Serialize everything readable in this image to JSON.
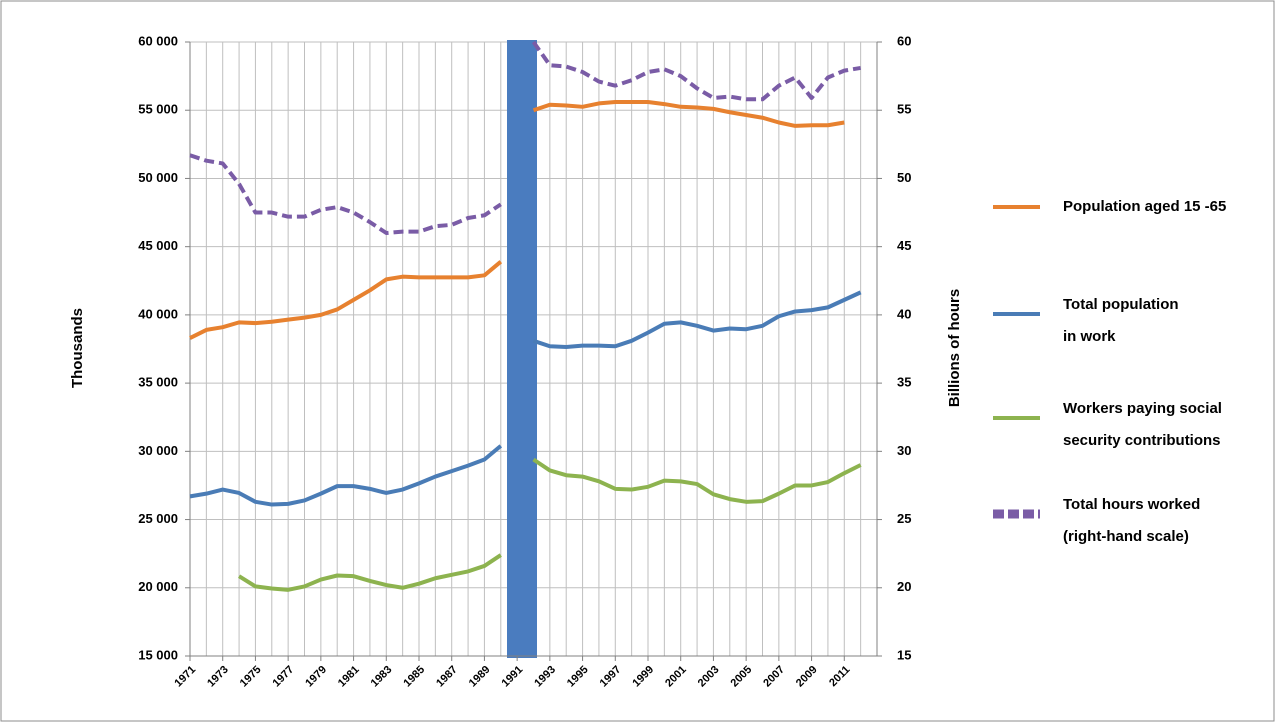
{
  "chart_data": {
    "type": "line",
    "y_label": "Thousands",
    "y2_label": "Billions of hours",
    "x": [
      1971,
      1972,
      1973,
      1974,
      1975,
      1976,
      1977,
      1978,
      1979,
      1980,
      1981,
      1982,
      1983,
      1984,
      1985,
      1986,
      1987,
      1988,
      1989,
      1990,
      1991,
      1992,
      1993,
      1994,
      1995,
      1996,
      1997,
      1998,
      1999,
      2000,
      2001,
      2002,
      2003,
      2004,
      2005,
      2006,
      2007,
      2008,
      2009,
      2010,
      2011,
      2012
    ],
    "xlim": [
      1971,
      2013
    ],
    "xticks": [
      1971,
      1973,
      1975,
      1977,
      1979,
      1981,
      1983,
      1985,
      1987,
      1989,
      1991,
      1993,
      1995,
      1997,
      1999,
      2001,
      2003,
      2005,
      2007,
      2009,
      2011
    ],
    "ylim": [
      15000,
      60000
    ],
    "yticks": [
      {
        "value": 15000,
        "label": "15 000"
      },
      {
        "value": 20000,
        "label": "20 000"
      },
      {
        "value": 25000,
        "label": "25 000"
      },
      {
        "value": 30000,
        "label": "30 000"
      },
      {
        "value": 35000,
        "label": "35 000"
      },
      {
        "value": 40000,
        "label": "40 000"
      },
      {
        "value": 45000,
        "label": "45 000"
      },
      {
        "value": 50000,
        "label": "50 000"
      },
      {
        "value": 55000,
        "label": "55 000"
      },
      {
        "value": 60000,
        "label": "60 000"
      }
    ],
    "y2lim": [
      15,
      60
    ],
    "y2ticks": [
      15,
      20,
      25,
      30,
      35,
      40,
      45,
      50,
      55,
      60
    ],
    "grid": true,
    "legend": "right",
    "series": [
      {
        "name": "Population aged 15 -65",
        "color": "#e7812f",
        "values": [
          38300,
          38900,
          39100,
          39450,
          39400,
          39500,
          39650,
          39800,
          40000,
          40400,
          41100,
          41800,
          42600,
          42800,
          42750,
          42750,
          42750,
          42750,
          42900,
          43900,
          null,
          55000,
          55400,
          55350,
          55250,
          55500,
          55600,
          55600,
          55600,
          55450,
          55250,
          55200,
          55100,
          54850,
          54650,
          54450,
          54100,
          53850,
          53900,
          53900,
          54100,
          null
        ]
      },
      {
        "name": "Total population\nin work",
        "color": "#4a7cb6",
        "values": [
          26700,
          26900,
          27200,
          26950,
          26300,
          26100,
          26150,
          26400,
          26900,
          27450,
          27450,
          27250,
          26950,
          27200,
          27650,
          28150,
          28550,
          28950,
          29400,
          30400,
          null,
          38100,
          37700,
          37650,
          37750,
          37750,
          37700,
          38100,
          38700,
          39350,
          39450,
          39200,
          38850,
          39000,
          38950,
          39200,
          39900,
          40250,
          40350,
          40550,
          41100,
          41650
        ]
      },
      {
        "name": "Workers paying social\nsecurity contributions",
        "color": "#8db34f",
        "values": [
          null,
          null,
          null,
          20850,
          20100,
          19950,
          19850,
          20100,
          20600,
          20900,
          20850,
          20500,
          20200,
          20000,
          20300,
          20700,
          20950,
          21200,
          21600,
          22400,
          null,
          29400,
          28600,
          28250,
          28150,
          27800,
          27250,
          27200,
          27400,
          27850,
          27800,
          27600,
          26850,
          26500,
          26300,
          26350,
          26900,
          27500,
          27500,
          27750,
          28400,
          29000
        ]
      },
      {
        "name": "Total hours worked\n(right-hand scale)",
        "color": "#7a5ca6",
        "axis": "y2",
        "dashed": true,
        "values": [
          51.7,
          51.3,
          51.1,
          49.6,
          47.5,
          47.5,
          47.2,
          47.2,
          47.7,
          47.9,
          47.5,
          46.8,
          46.0,
          46.1,
          46.1,
          46.5,
          46.6,
          47.1,
          47.3,
          48.1,
          null,
          60.0,
          58.3,
          58.2,
          57.8,
          57.1,
          56.8,
          57.2,
          57.8,
          58.0,
          57.5,
          56.6,
          55.9,
          56.0,
          55.8,
          55.8,
          56.8,
          57.4,
          55.9,
          57.4,
          57.9,
          58.1
        ]
      }
    ]
  }
}
